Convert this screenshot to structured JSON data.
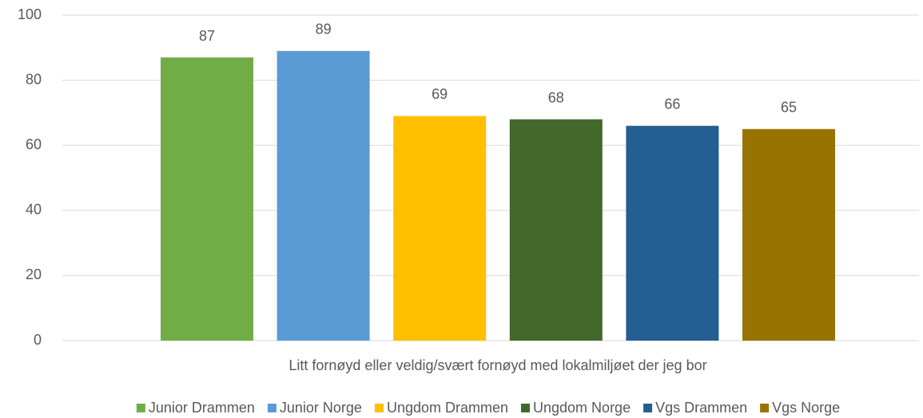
{
  "chart_data": {
    "type": "bar",
    "categories": [
      "Litt fornøyd eller veldig/svært fornøyd med lokalmiljøet der jeg bor"
    ],
    "series": [
      {
        "name": "Junior Drammen",
        "color": "#70ad47",
        "values": [
          87
        ]
      },
      {
        "name": "Junior Norge",
        "color": "#5b9bd5",
        "values": [
          89
        ]
      },
      {
        "name": "Ungdom Drammen",
        "color": "#ffc000",
        "values": [
          69
        ]
      },
      {
        "name": "Ungdom Norge",
        "color": "#43682b",
        "values": [
          68
        ]
      },
      {
        "name": "Vgs Drammen",
        "color": "#255e91",
        "values": [
          66
        ]
      },
      {
        "name": "Vgs Norge",
        "color": "#997300",
        "values": [
          65
        ]
      }
    ],
    "ylim": [
      0,
      100
    ],
    "yticks": [
      0,
      20,
      40,
      60,
      80,
      100
    ],
    "grid": true,
    "legend": "bottom"
  }
}
